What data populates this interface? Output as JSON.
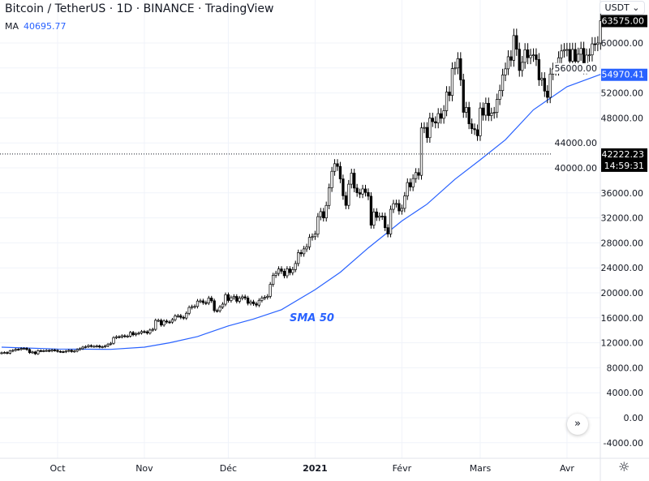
{
  "header": {
    "title": "Bitcoin / TetherUS · 1D · BINANCE · TradingView",
    "ma_label": "MA",
    "ma_value": "40695.77"
  },
  "currency_button": "USDT ⌄",
  "annotation": "SMA 50",
  "colors": {
    "up": "#ffffff",
    "down": "#000000",
    "candle_border": "#000000",
    "sma": "#2962ff",
    "grid": "#f0f3fa"
  },
  "chart_data": {
    "type": "candlestick",
    "start_date": "2020-09-11",
    "interval": "1D",
    "first_open": 10330,
    "closes": [
      10400,
      10440,
      10330,
      10680,
      10790,
      10950,
      10940,
      11080,
      11100,
      10920,
      10420,
      10530,
      10240,
      10740,
      10690,
      10730,
      10770,
      10690,
      10840,
      10780,
      10620,
      10570,
      10550,
      10670,
      10790,
      10600,
      10670,
      10920,
      11060,
      11300,
      11380,
      11550,
      11430,
      11430,
      11500,
      11320,
      11360,
      11500,
      11760,
      11920,
      12820,
      12970,
      12930,
      13120,
      13030,
      13070,
      13650,
      13280,
      13460,
      13560,
      13800,
      13760,
      13550,
      14030,
      14150,
      15590,
      15590,
      14840,
      15480,
      15330,
      15310,
      15700,
      16290,
      16330,
      16070,
      15960,
      16720,
      17650,
      17780,
      17820,
      18680,
      18710,
      18420,
      18370,
      19160,
      18720,
      17150,
      17140,
      17720,
      18180,
      19700,
      18770,
      19210,
      19420,
      18650,
      19150,
      19360,
      19170,
      18320,
      18550,
      18250,
      18030,
      18800,
      19170,
      19270,
      19440,
      21350,
      22800,
      23110,
      23820,
      23460,
      22730,
      23830,
      23230,
      23730,
      24690,
      26440,
      26250,
      27030,
      27360,
      28880,
      28990,
      29400,
      32190,
      33000,
      31990,
      33990,
      36820,
      39450,
      40670,
      40240,
      38240,
      35540,
      34000,
      37390,
      39160,
      36770,
      36030,
      35810,
      36630,
      36070,
      35470,
      30830,
      32950,
      32080,
      32280,
      32250,
      30430,
      29420,
      33370,
      34270,
      34300,
      33110,
      33520,
      35500,
      37650,
      36950,
      38290,
      39250,
      38810,
      46400,
      46480,
      44840,
      47970,
      47400,
      47190,
      48690,
      47940,
      49160,
      52150,
      51600,
      55900,
      56000,
      57490,
      54100,
      48900,
      49680,
      47060,
      46280,
      46110,
      45140,
      49590,
      48440,
      50350,
      48370,
      48760,
      48880,
      50970,
      52380,
      54880,
      55860,
      57800,
      57230,
      61190,
      59000,
      55600,
      56900,
      58910,
      57650,
      58030,
      58100,
      57350,
      54100,
      54340,
      52300,
      51290,
      55030,
      55840,
      55780,
      57630,
      58730,
      58920,
      58960,
      57090,
      58970,
      57060,
      58200,
      59130,
      56000,
      58060,
      58090,
      59860,
      59770,
      60000,
      63575
    ],
    "sma50": [
      {
        "date": "2020-09-11",
        "value": 11300
      },
      {
        "date": "2020-10-01",
        "value": 11000
      },
      {
        "date": "2020-10-20",
        "value": 10950
      },
      {
        "date": "2020-11-01",
        "value": 11300
      },
      {
        "date": "2020-11-10",
        "value": 12000
      },
      {
        "date": "2020-11-20",
        "value": 13000
      },
      {
        "date": "2020-12-01",
        "value": 14700
      },
      {
        "date": "2020-12-10",
        "value": 15800
      },
      {
        "date": "2020-12-20",
        "value": 17300
      },
      {
        "date": "2021-01-01",
        "value": 20500
      },
      {
        "date": "2021-01-10",
        "value": 23300
      },
      {
        "date": "2021-01-20",
        "value": 27200
      },
      {
        "date": "2021-02-01",
        "value": 31500
      },
      {
        "date": "2021-02-10",
        "value": 34200
      },
      {
        "date": "2021-02-20",
        "value": 38200
      },
      {
        "date": "2021-03-01",
        "value": 41300
      },
      {
        "date": "2021-03-10",
        "value": 44500
      },
      {
        "date": "2021-03-20",
        "value": 49300
      },
      {
        "date": "2021-04-01",
        "value": 53000
      },
      {
        "date": "2021-04-13",
        "value": 54970
      }
    ],
    "y_ticks": [
      "60000.00",
      "56000.00",
      "52000.00",
      "48000.00",
      "44000.00",
      "40000.00",
      "36000.00",
      "32000.00",
      "28000.00",
      "24000.00",
      "20000.00",
      "16000.00",
      "12000.00",
      "8000.00",
      "4000.00",
      "0.00",
      "-4000.00"
    ],
    "x_ticks": [
      {
        "label": "Oct",
        "date": "2020-10-01",
        "bold": false
      },
      {
        "label": "Nov",
        "date": "2020-11-01",
        "bold": false
      },
      {
        "label": "Déc",
        "date": "2020-12-01",
        "bold": false
      },
      {
        "label": "2021",
        "date": "2021-01-01",
        "bold": true
      },
      {
        "label": "Févr",
        "date": "2021-02-01",
        "bold": false
      },
      {
        "label": "Mars",
        "date": "2021-03-01",
        "bold": false
      },
      {
        "label": "Avr",
        "date": "2021-04-01",
        "bold": false
      }
    ],
    "last_price": "63575.00",
    "sma_last": "54970.41",
    "crosshair_price": "42222.23",
    "crosshair_value": 42222.23,
    "countdown": "14:59:31",
    "ylim": [
      -5500,
      66000
    ],
    "grid": true
  }
}
